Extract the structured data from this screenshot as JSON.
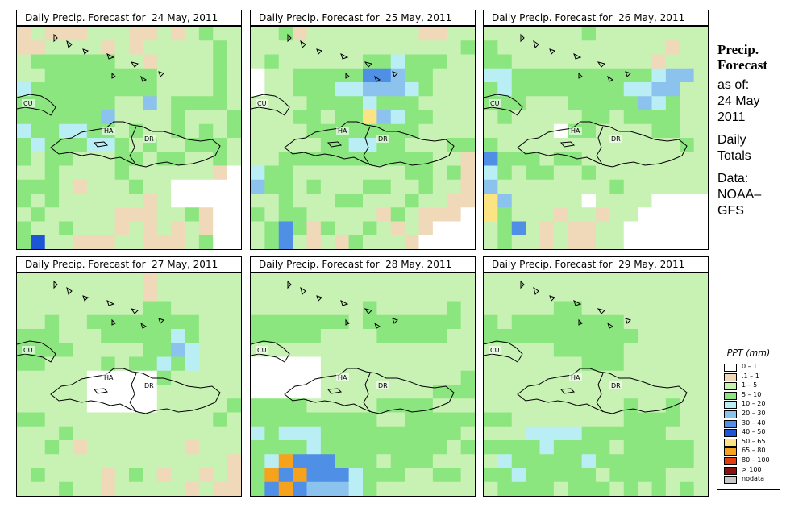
{
  "side_panel": {
    "heading": [
      "Precip.",
      "Forecast"
    ],
    "lines": [
      "as of:",
      "24 May",
      "2011",
      "",
      "Daily",
      "Totals",
      "",
      "Data:",
      "NOAA–",
      "GFS"
    ]
  },
  "panels": [
    {
      "title": "Daily Precip. Forecast for  24 May, 2011",
      "labels": [
        "CU",
        "HA",
        "DR"
      ],
      "grid": [
        "1211122211212322",
        "1122221212222232",
        "2333333221222232",
        "2233333333222232",
        "4333333333222232",
        "3333333225233332",
        "3333335222232223",
        "4334433232232323",
        "3433344323223332",
        "3233222332332232",
        "2232222322222210",
        "3332122232200000",
        "3232222221200000",
        "2322222111223100",
        "3223222121212100",
        "3722111221112300"
      ]
    },
    {
      "title": "Daily Precip. Forecast for  25 May, 2011",
      "labels": [
        "CU",
        "HA",
        "DR"
      ],
      "grid": [
        "2231222222221122",
        "2222222222222223",
        "2322222233433322",
        "0223333366533222",
        "0223334455543222",
        "2222333343332222",
        "2223323385433222",
        "2222333333332222",
        "2222233443322233",
        "2233333333333221",
        "4332222222233231",
        "5332322233223221",
        "2232223322232211",
        "3233222221321110",
        "2363132232121000",
        "2362121322210000"
      ]
    },
    {
      "title": "Daily Precip. Forecast for  26 May, 2011",
      "labels": [
        "CU",
        "HA",
        "DR"
      ],
      "grid": [
        "2222222322222222",
        "3222222222222122",
        "3322222222221222",
        "4433333333334552",
        "3433333333445522",
        "3332223333354322",
        "2322222332333322",
        "2222203322223322",
        "3222222222222232",
        "6333233222222222",
        "4323322322222222",
        "5222222223222222",
        "8522222022220000",
        "8322212212200000",
        "2362121122000000",
        "2322121122000000"
      ]
    },
    {
      "title": "Daily Precip. Forecast for  27 May, 2011",
      "labels": [
        "CU",
        "HA",
        "DR"
      ],
      "grid": [
        "2222222221222222",
        "2222222221222222",
        "2222222223322222",
        "2232233333333222",
        "3332223333343222",
        "3333222223354222",
        "3322223233434222",
        "2222200000322222",
        "2222200000222222",
        "2222200000222223",
        "3322222222222232",
        "2223222222222222",
        "2232122222221222",
        "2222222222222221",
        "2322221232122121",
        "2223221222221211"
      ]
    },
    {
      "title": "Daily Precip. Forecast for  28 May, 2011",
      "labels": [
        "CU",
        "HA",
        "DR"
      ],
      "grid": [
        "2222222222222222",
        "2222222222222222",
        "2222222232222232",
        "3333333233333332",
        "3333322223333322",
        "2222222222222222",
        "0000022222222222",
        "0000022222222223",
        "0000022222222333",
        "3333222223333222",
        "3333333332233333",
        "4344433333333332",
        "3333433333333323",
        "3496663332333222",
        "3969666433322332",
        "3696555432222222"
      ]
    },
    {
      "title": "Daily Precip. Forecast for  29 May, 2011",
      "labels": [
        "CU",
        "HA",
        "DR"
      ],
      "grid": [
        "2222222222222222",
        "2222222222222222",
        "2222233222222222",
        "3233333333222222",
        "3333333333322222",
        "2222233333222222",
        "2222222333222222",
        "2222222222222222",
        "2222222222222222",
        "2222222222322322",
        "3322222222333322",
        "2224444333333222",
        "3333433332333332",
        "2433333433333332",
        "3343333323333222",
        "2333323332323232"
      ]
    }
  ],
  "legend": {
    "title": "PPT (mm)",
    "classes": [
      {
        "label": "0 – 1",
        "color": "#ffffff"
      },
      {
        "label": ".1 – 1",
        "color": "#efd9b8"
      },
      {
        "label": "1 – 5",
        "color": "#c8f1b4"
      },
      {
        "label": "5 – 10",
        "color": "#8ce67f"
      },
      {
        "label": "10 – 20",
        "color": "#b9eff4"
      },
      {
        "label": "20 – 30",
        "color": "#8bc2ee"
      },
      {
        "label": "30 – 40",
        "color": "#4f8fe5"
      },
      {
        "label": "40 – 50",
        "color": "#1c55d6"
      },
      {
        "label": "50 – 65",
        "color": "#fde482"
      },
      {
        "label": "65 – 80",
        "color": "#f7a21c"
      },
      {
        "label": "80 – 100",
        "color": "#e63c0f"
      },
      {
        "label": "> 100",
        "color": "#8b1010"
      },
      {
        "label": "nodata",
        "color": "#c8c8c8"
      }
    ]
  }
}
